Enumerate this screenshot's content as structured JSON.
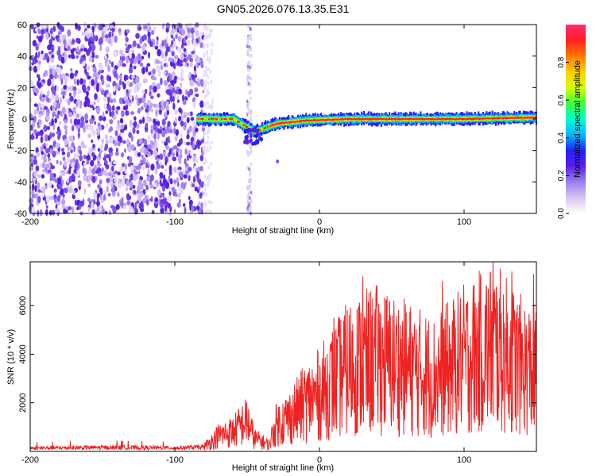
{
  "title": "GN05.2026.076.13.35.E31",
  "chart_data": [
    {
      "type": "heatmap",
      "name": "spectrogram",
      "xlabel": "Height of straight line (km)",
      "ylabel": "Frequency (Hz)",
      "xlim": [
        -200,
        150
      ],
      "ylim": [
        -60,
        60
      ],
      "xticks": [
        -200,
        -100,
        0,
        100
      ],
      "yticks": [
        -60,
        -40,
        -20,
        0,
        20,
        40,
        60
      ],
      "colorbar": {
        "label": "Normalized spectral amplitude",
        "range": [
          0,
          1
        ],
        "ticks": [
          "0.0",
          "0.2",
          "0.4",
          "0.6",
          "0.8"
        ],
        "colors": [
          "#ffffff",
          "#d9c4f5",
          "#9a7ff0",
          "#5a1fe6",
          "#2020ff",
          "#00b8ff",
          "#00ffd0",
          "#3cff3c",
          "#d8ff00",
          "#ffd000",
          "#ff7a00",
          "#ff2020",
          "#ff2a6e"
        ]
      },
      "features": {
        "noise_region_km": [
          -200,
          -80
        ],
        "sparse_streak_km": [
          -50,
          -47
        ],
        "signal_band_km": [
          -85,
          150
        ],
        "signal_center_hz": [
          {
            "x": -85,
            "f": 0
          },
          {
            "x": -60,
            "f": 0
          },
          {
            "x": -45,
            "f": -8
          },
          {
            "x": -30,
            "f": -3
          },
          {
            "x": -10,
            "f": -1
          },
          {
            "x": 20,
            "f": 0
          },
          {
            "x": 60,
            "f": 0
          },
          {
            "x": 100,
            "f": 0
          },
          {
            "x": 150,
            "f": 1
          }
        ]
      }
    },
    {
      "type": "line",
      "name": "snr",
      "xlabel": "Height of straight line (km)",
      "ylabel": "SNR (10 * v/v)",
      "xlim": [
        -200,
        150
      ],
      "ylim": [
        0,
        7800
      ],
      "xticks": [
        -200,
        -100,
        0,
        100
      ],
      "yticks": [
        2000,
        4000,
        6000
      ],
      "color": "#ee2222",
      "envelope": [
        {
          "x": -200,
          "y": 150
        },
        {
          "x": -150,
          "y": 180
        },
        {
          "x": -100,
          "y": 160
        },
        {
          "x": -80,
          "y": 200
        },
        {
          "x": -70,
          "y": 700
        },
        {
          "x": -60,
          "y": 900
        },
        {
          "x": -50,
          "y": 1400
        },
        {
          "x": -45,
          "y": 600
        },
        {
          "x": -35,
          "y": 300
        },
        {
          "x": -30,
          "y": 1200
        },
        {
          "x": -20,
          "y": 1600
        },
        {
          "x": -10,
          "y": 2200
        },
        {
          "x": 0,
          "y": 2600
        },
        {
          "x": 10,
          "y": 3200
        },
        {
          "x": 20,
          "y": 3800
        },
        {
          "x": 40,
          "y": 4200
        },
        {
          "x": 60,
          "y": 3800
        },
        {
          "x": 80,
          "y": 3400
        },
        {
          "x": 100,
          "y": 4200
        },
        {
          "x": 120,
          "y": 4800
        },
        {
          "x": 140,
          "y": 3900
        },
        {
          "x": 150,
          "y": 3600
        }
      ],
      "peaks": [
        {
          "x": 30,
          "y": 7200
        },
        {
          "x": 120,
          "y": 7800
        },
        {
          "x": 133,
          "y": 7400
        },
        {
          "x": 148,
          "y": 7300
        },
        {
          "x": 85,
          "y": 7000
        },
        {
          "x": 10,
          "y": 5500
        }
      ]
    }
  ]
}
